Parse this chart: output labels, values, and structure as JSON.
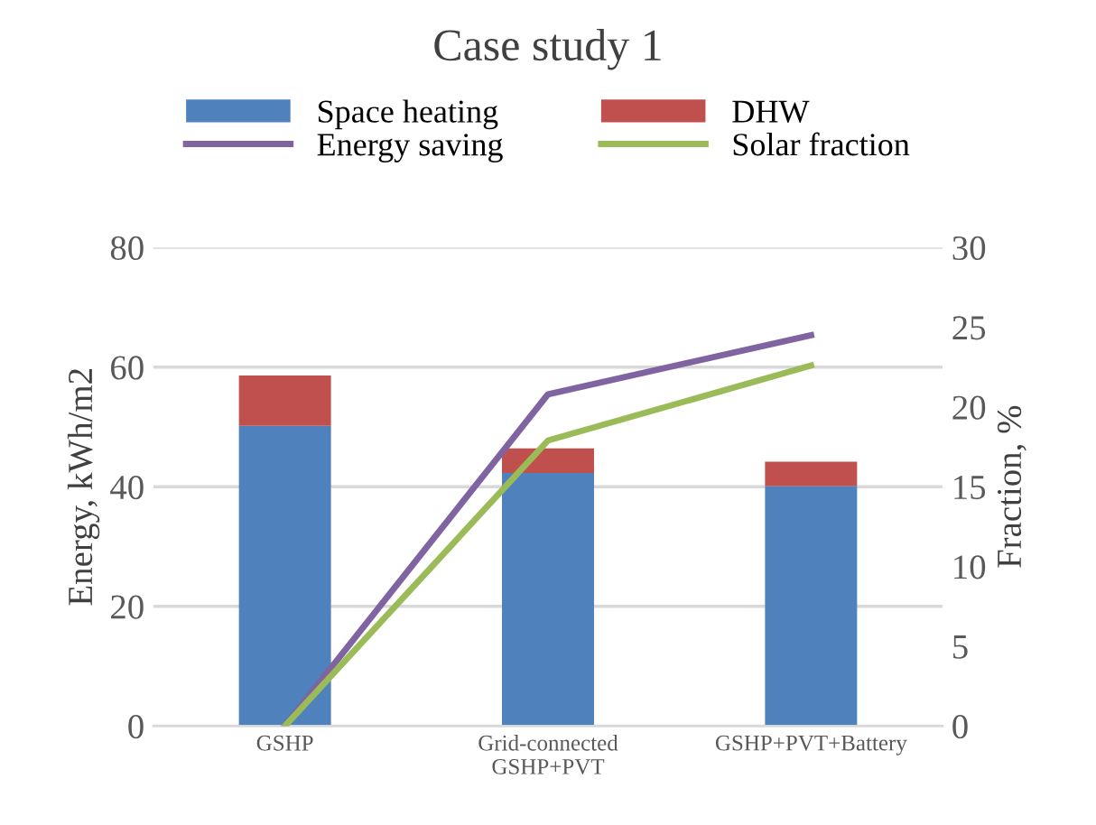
{
  "chart_data": {
    "type": "bar",
    "title": "Case study 1",
    "categories": [
      "GSHP",
      "Grid-connected\nGSHP+PVT",
      "GSHP+PVT+Battery"
    ],
    "stacked": true,
    "ylabel": "Energy, kWh/m2",
    "y2label": "Fraction, %",
    "ylim": [
      0,
      80
    ],
    "yticks": [
      0,
      20,
      40,
      60,
      80
    ],
    "y2lim": [
      0,
      30
    ],
    "y2ticks": [
      0,
      5,
      10,
      15,
      20,
      25,
      30
    ],
    "grid": "y",
    "legend": "top",
    "series": [
      {
        "name": "Space heating",
        "color": "#4f81bd",
        "values": [
          50.2,
          42.3,
          40.1
        ]
      },
      {
        "name": "DHW",
        "color": "#c0504d",
        "values": [
          8.4,
          4.1,
          4.1
        ]
      },
      {
        "name": "Energy saving",
        "type": "line",
        "axis": "y2",
        "color": "#8064a2",
        "values": [
          0,
          20.8,
          24.5
        ]
      },
      {
        "name": "Solar fraction",
        "type": "line",
        "axis": "y2",
        "color": "#9bbb59",
        "values": [
          0,
          17.9,
          22.6
        ]
      }
    ]
  }
}
